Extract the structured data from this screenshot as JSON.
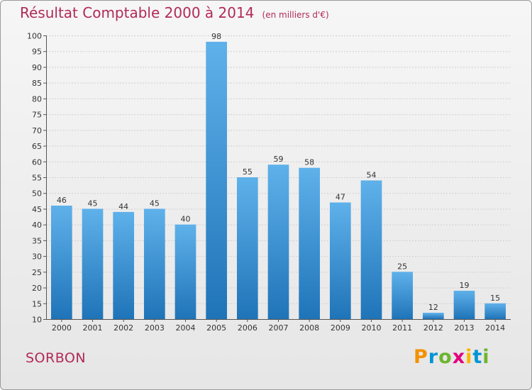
{
  "header": {
    "title": "Résultat Comptable 2000 à 2014",
    "unit": "(en milliers d'€)"
  },
  "commune": {
    "name": "SORBON"
  },
  "brand": {
    "letters": [
      "P",
      "r",
      "o",
      "x",
      "i",
      "t",
      "i"
    ],
    "colors": [
      "#f39200",
      "#0095d5",
      "#6cb52d",
      "#e3007d",
      "#f8b500",
      "#0095d5",
      "#6cb52d"
    ]
  },
  "colors": {
    "title": "#b12a57",
    "bar_top": "#5fb1ea",
    "bar_bottom": "#1f74b8"
  },
  "chart_data": {
    "type": "bar",
    "categories": [
      "2000",
      "2001",
      "2002",
      "2003",
      "2004",
      "2005",
      "2006",
      "2007",
      "2008",
      "2009",
      "2010",
      "2011",
      "2012",
      "2013",
      "2014"
    ],
    "values": [
      46,
      45,
      44,
      45,
      40,
      98,
      55,
      59,
      58,
      47,
      54,
      25,
      12,
      19,
      15
    ],
    "ylim": [
      10,
      100
    ],
    "yticks": [
      10,
      15,
      20,
      25,
      30,
      35,
      40,
      45,
      50,
      55,
      60,
      65,
      70,
      75,
      80,
      85,
      90,
      95,
      100
    ],
    "grid": true,
    "legend": "none",
    "xlabel": "",
    "ylabel": ""
  }
}
